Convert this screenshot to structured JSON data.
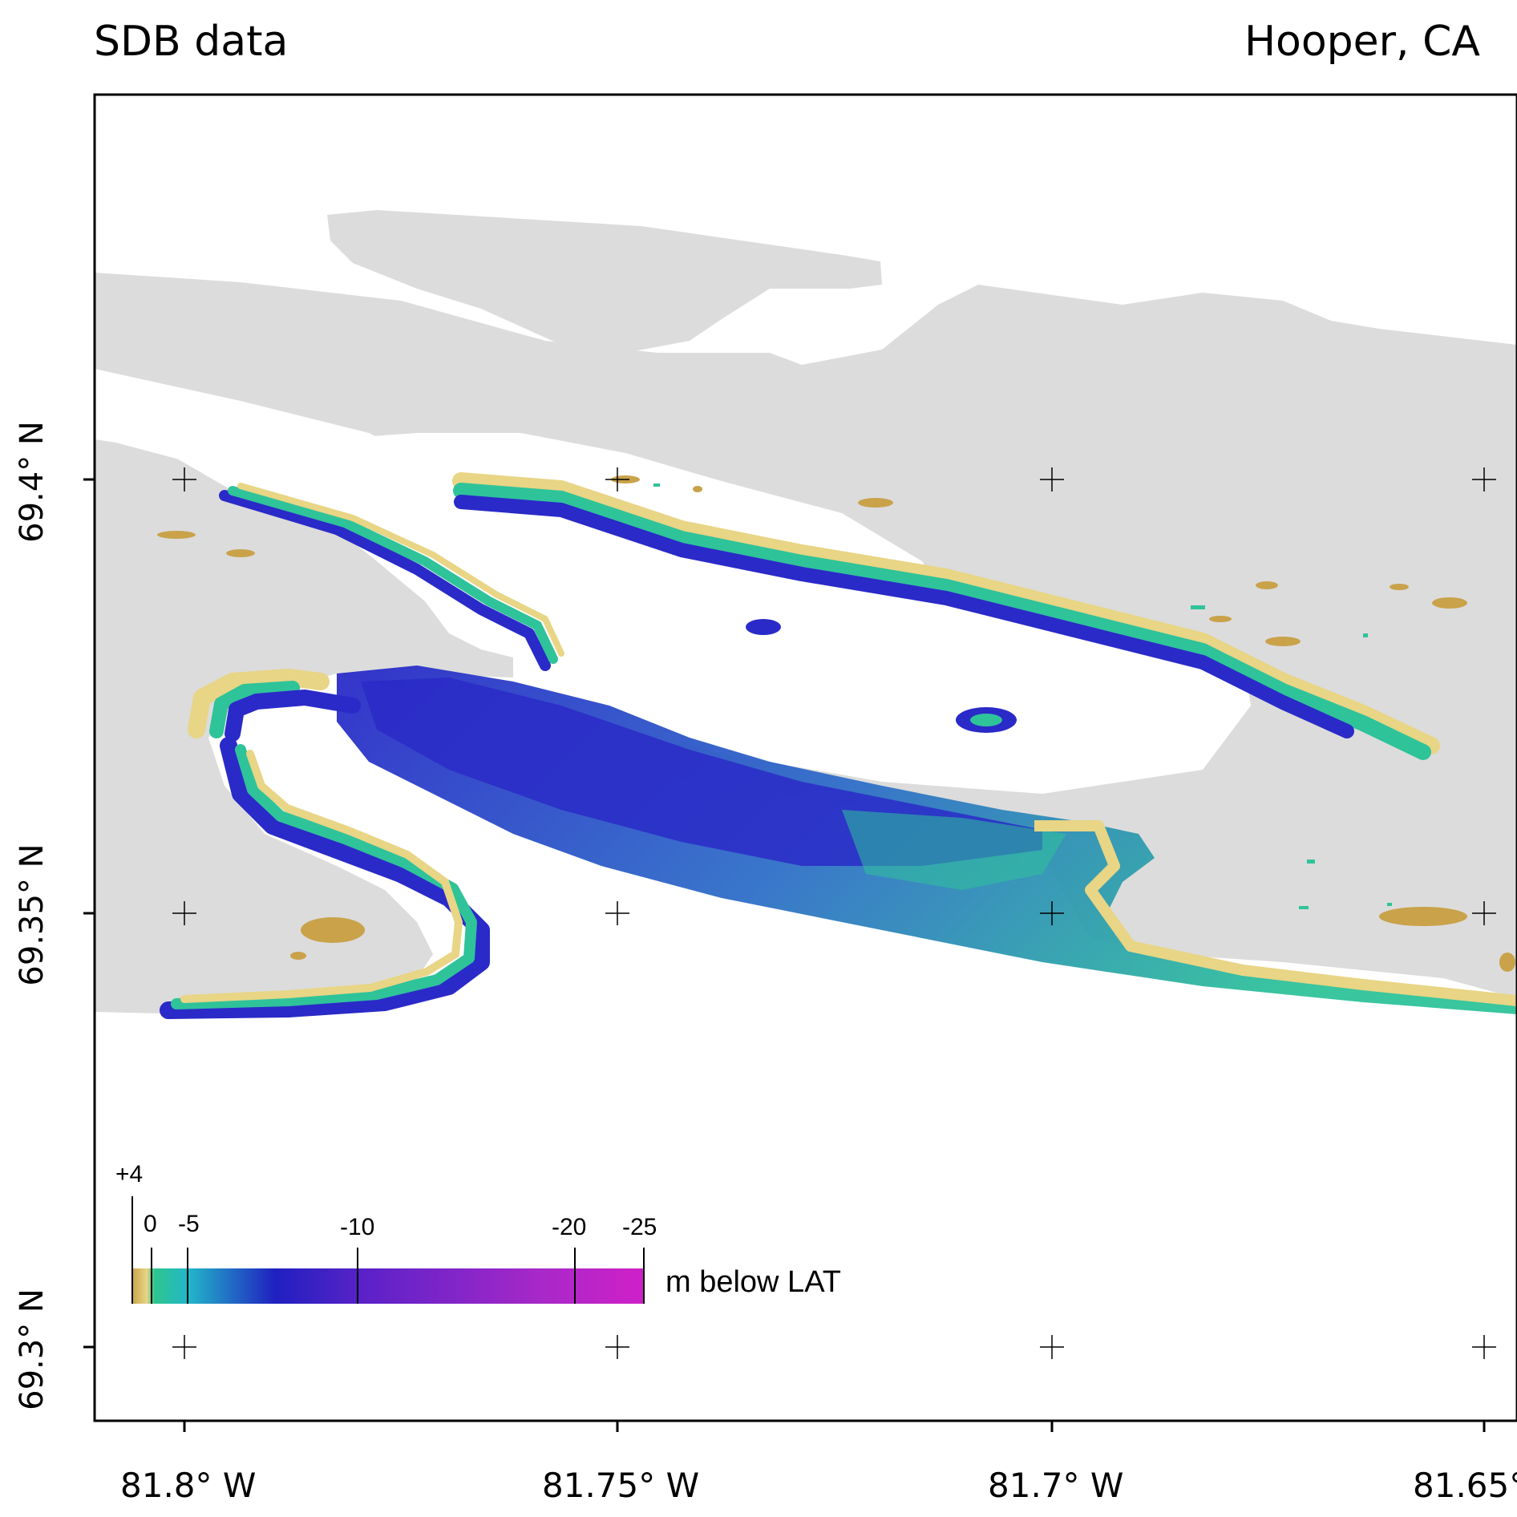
{
  "title_left": "SDB data",
  "title_right": "Hooper, CA",
  "y_axis_labels": [
    "69.4° N",
    "69.35° N",
    "69.3° N"
  ],
  "x_axis_labels": [
    "81.8° W",
    "81.75° W",
    "81.7° W",
    "81.65°"
  ],
  "legend": {
    "units": "m below LAT",
    "ticks": [
      "+4",
      "0",
      "-5",
      "-10",
      "-20",
      "-25"
    ],
    "colors": [
      "#c9a24a",
      "#e8d585",
      "#2ec58e",
      "#22b7c9",
      "#2020c0",
      "#5a22c8",
      "#a828c8",
      "#d020c8"
    ]
  },
  "colors": {
    "land": "#dcdcdc",
    "shallow": "#e8d585",
    "mid": "#2fc39a",
    "deep": "#2a2ac8",
    "drying": "#c9a24a"
  }
}
